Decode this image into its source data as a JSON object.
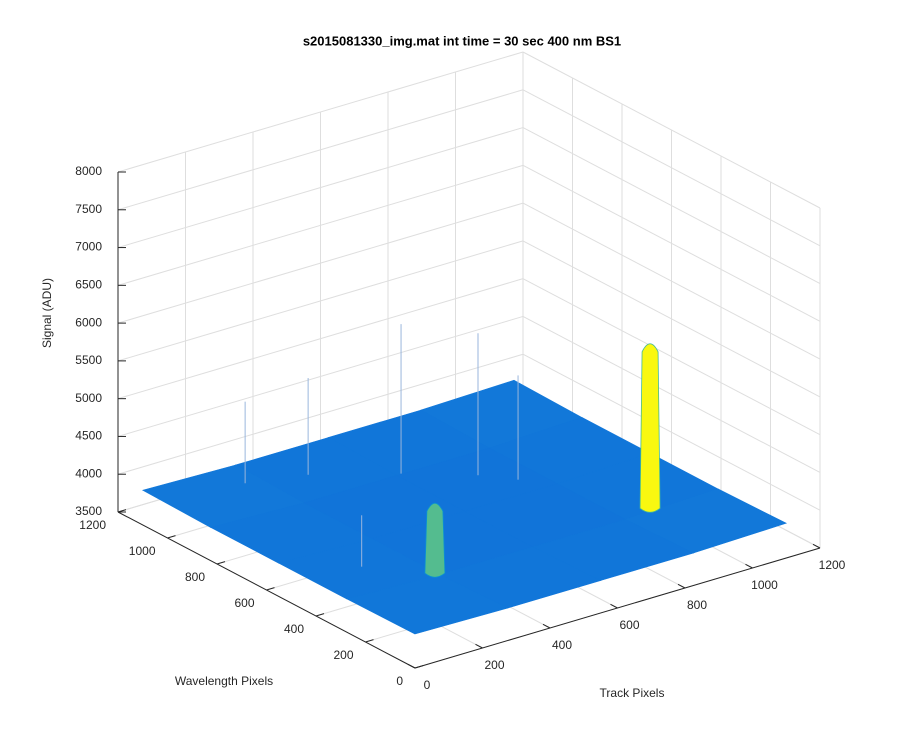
{
  "chart_data": {
    "type": "surface",
    "title": "s2015081330_img.mat int time = 30 sec  400 nm BS1",
    "x_label": "Track Pixels",
    "y_label": "Wavelength Pixels",
    "z_label": "Signal (ADU)",
    "xlim": [
      0,
      1200
    ],
    "ylim": [
      0,
      1200
    ],
    "zlim": [
      3500,
      8000
    ],
    "xticks": [
      0,
      200,
      400,
      600,
      800,
      1000,
      1200
    ],
    "yticks": [
      0,
      200,
      400,
      600,
      800,
      1000,
      1200
    ],
    "zticks": [
      3500,
      4000,
      4500,
      5000,
      5500,
      6000,
      6500,
      7000,
      7500,
      8000
    ],
    "grid": true,
    "x": [
      0,
      275,
      550,
      825,
      1100
    ],
    "y": [
      0,
      275,
      550,
      825,
      1100
    ],
    "z": [
      [
        3950,
        3930,
        3930,
        3930,
        3960
      ],
      [
        3940,
        3900,
        3900,
        3900,
        3940
      ],
      [
        3940,
        3900,
        3900,
        3900,
        3940
      ],
      [
        3940,
        3900,
        3900,
        3900,
        3940
      ],
      [
        3960,
        3930,
        3930,
        3930,
        3960
      ]
    ],
    "peaks": [
      {
        "x": 265,
        "y": 281,
        "z": 4900
      },
      {
        "x": 907,
        "y": 287,
        "z": 6150
      }
    ],
    "spikes": [
      {
        "x": 230,
        "y": 1000,
        "z": 5000
      },
      {
        "x": 380,
        "y": 950,
        "z": 5200
      },
      {
        "x": 560,
        "y": 820,
        "z": 5900
      },
      {
        "x": 700,
        "y": 700,
        "z": 5800
      },
      {
        "x": 760,
        "y": 620,
        "z": 5300
      },
      {
        "x": 150,
        "y": 420,
        "z": 4600
      }
    ]
  }
}
